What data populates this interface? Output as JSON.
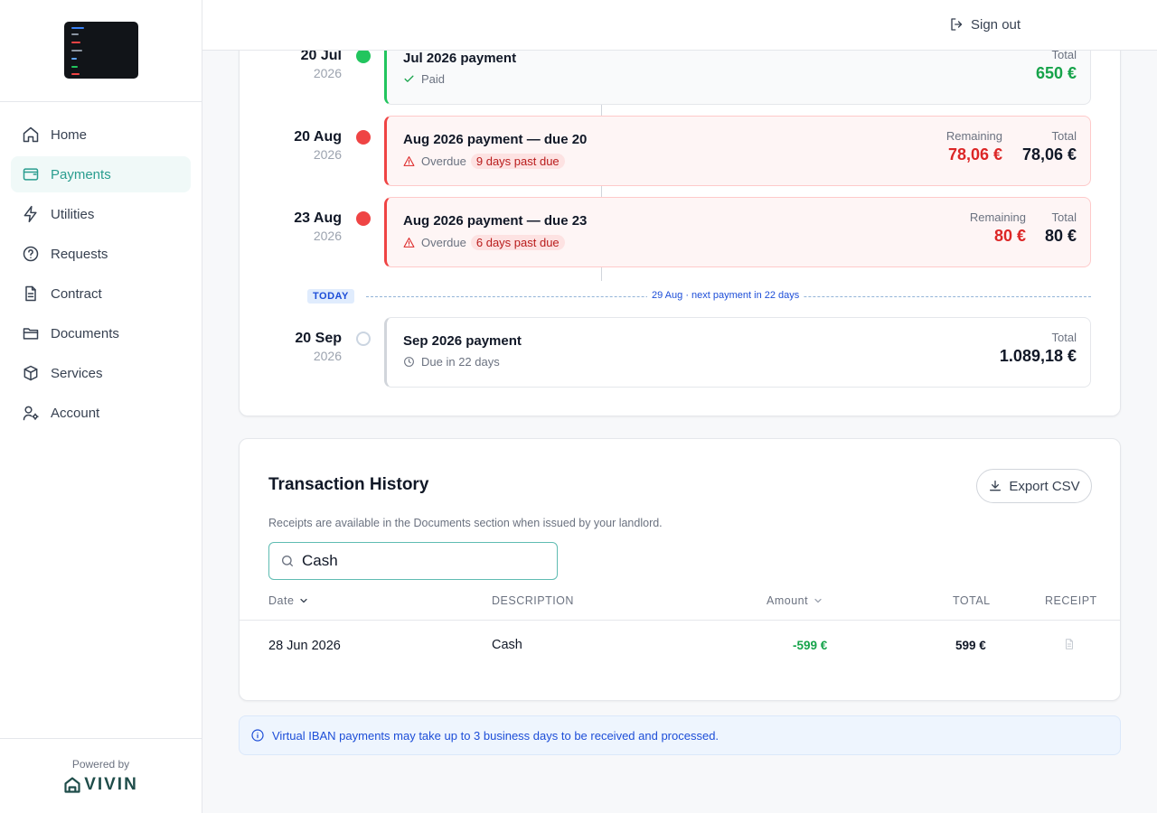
{
  "sidebar": {
    "items": [
      {
        "label": "Home",
        "icon": "home-icon"
      },
      {
        "label": "Payments",
        "icon": "wallet-icon",
        "active": true
      },
      {
        "label": "Utilities",
        "icon": "bolt-icon"
      },
      {
        "label": "Requests",
        "icon": "help-circle-icon"
      },
      {
        "label": "Contract",
        "icon": "file-text-icon"
      },
      {
        "label": "Documents",
        "icon": "folder-icon"
      },
      {
        "label": "Services",
        "icon": "package-icon"
      },
      {
        "label": "Account",
        "icon": "user-cog-icon"
      }
    ],
    "powered_by": "Powered by",
    "brand": "VIVIN"
  },
  "header": {
    "sign_out": "Sign out"
  },
  "timeline": {
    "payments": [
      {
        "day": "20 Jul",
        "year": "2026",
        "title": "Jul 2026 payment",
        "status": "Paid",
        "total_label": "Total",
        "total": "650 €"
      },
      {
        "day": "20 Aug",
        "year": "2026",
        "title": "Aug 2026 payment — due 20",
        "status": "Overdue",
        "pill": "9 days past due",
        "remaining_label": "Remaining",
        "remaining": "78,06 €",
        "total_label": "Total",
        "total": "78,06 €"
      },
      {
        "day": "23 Aug",
        "year": "2026",
        "title": "Aug 2026 payment — due 23",
        "status": "Overdue",
        "pill": "6 days past due",
        "remaining_label": "Remaining",
        "remaining": "80 €",
        "total_label": "Total",
        "total": "80 €"
      },
      {
        "day": "20 Sep",
        "year": "2026",
        "title": "Sep 2026 payment",
        "status": "Due in 22 days",
        "total_label": "Total",
        "total": "1.089,18 €"
      }
    ],
    "today_badge": "TODAY",
    "today_text": "29 Aug · next payment in 22 days"
  },
  "transactions": {
    "title": "Transaction History",
    "subtitle": "Receipts are available in the Documents section when issued by your landlord.",
    "export_label": "Export CSV",
    "search_value": "Cash",
    "columns": {
      "date": "Date",
      "description": "DESCRIPTION",
      "amount": "Amount",
      "total": "TOTAL",
      "receipt": "RECEIPT"
    },
    "rows": [
      {
        "date": "28 Jun 2026",
        "description": "Cash",
        "amount": "-599 €",
        "total": "599 €"
      }
    ]
  },
  "info_banner": "Virtual IBAN payments may take up to 3 business days to be received and processed.",
  "colors": {
    "accent": "#2a9d8f",
    "paid": "#22c55e",
    "overdue": "#ef4444",
    "info": "#1d4ed8"
  }
}
